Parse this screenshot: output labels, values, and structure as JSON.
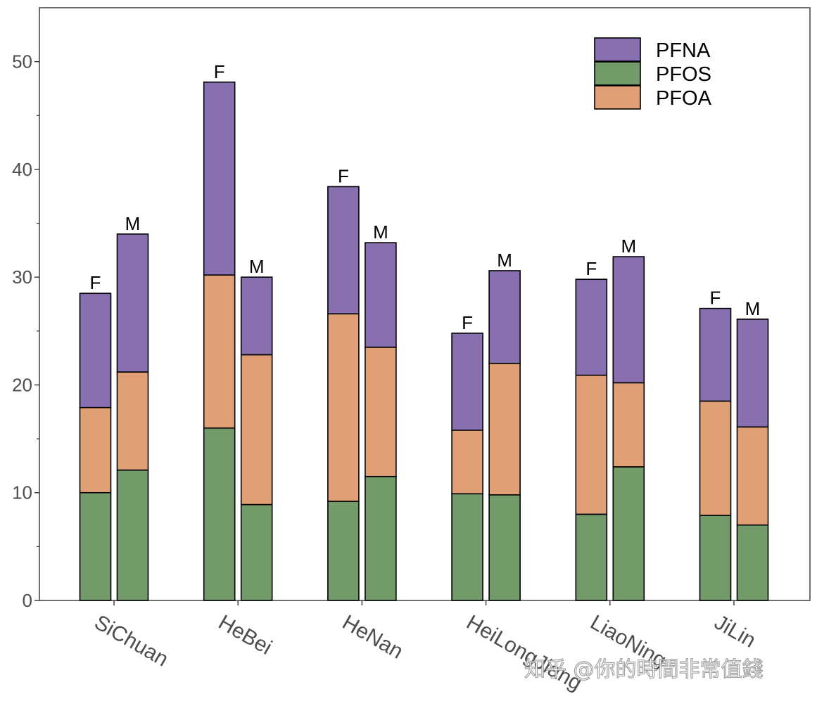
{
  "chart_data": {
    "type": "bar",
    "stacked": true,
    "title": "",
    "xlabel": "",
    "ylabel": "",
    "ylim": [
      0,
      55
    ],
    "yticks": [
      0,
      10,
      20,
      30,
      40,
      50
    ],
    "grid": false,
    "legend_position": "top-right",
    "categories": [
      "SiChuan",
      "HeBei",
      "HeNan",
      "HeiLongJiang",
      "LiaoNing",
      "JiLin"
    ],
    "groups": [
      "F",
      "M"
    ],
    "series": [
      {
        "name": "PFOS",
        "color": "#739b69",
        "values": {
          "F": [
            10.0,
            16.0,
            9.2,
            9.9,
            8.0,
            7.9
          ],
          "M": [
            12.1,
            8.9,
            11.5,
            9.8,
            12.4,
            7.0
          ]
        }
      },
      {
        "name": "PFOA",
        "color": "#e09f74",
        "values": {
          "F": [
            7.9,
            14.2,
            17.4,
            5.9,
            12.9,
            10.6
          ],
          "M": [
            9.1,
            13.9,
            12.0,
            12.2,
            7.8,
            9.1
          ]
        }
      },
      {
        "name": "PFNA",
        "color": "#876fb0",
        "values": {
          "F": [
            10.6,
            17.9,
            11.8,
            9.0,
            8.9,
            8.6
          ],
          "M": [
            12.8,
            7.2,
            9.7,
            8.6,
            11.7,
            10.0
          ]
        }
      }
    ],
    "legend": [
      {
        "label": "PFNA",
        "color": "#876fb0"
      },
      {
        "label": "PFOS",
        "color": "#739b69"
      },
      {
        "label": "PFOA",
        "color": "#e09f74"
      }
    ]
  },
  "watermark": "知乎 @你的時間非常值錢"
}
